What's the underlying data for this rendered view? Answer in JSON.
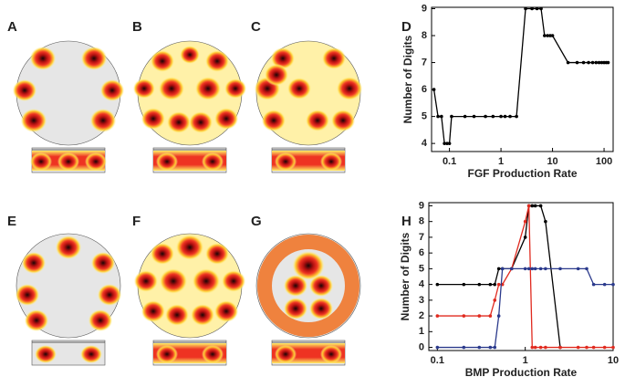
{
  "panel_labels": [
    "A",
    "B",
    "C",
    "D",
    "E",
    "F",
    "G",
    "H"
  ],
  "chart_data": [
    {
      "type": "line",
      "x_label": "FGF Production Rate",
      "y_label": "Number of Digits",
      "xscale": "log",
      "xlim": [
        0.045,
        150
      ],
      "xticks": [
        0.1,
        1,
        10,
        100
      ],
      "ylim": [
        3.7,
        9.05
      ],
      "yticks": [
        4,
        5,
        6,
        7,
        8,
        9
      ],
      "x": [
        0.05,
        0.06,
        0.07,
        0.08,
        0.09,
        0.1,
        0.11,
        0.2,
        0.3,
        0.5,
        0.7,
        1,
        1.2,
        1.5,
        2,
        3,
        4,
        5,
        6,
        7,
        8,
        9,
        10,
        20,
        30,
        40,
        50,
        60,
        70,
        80,
        90,
        100,
        110,
        120
      ],
      "series": [
        {
          "color": "#000000",
          "values": [
            6,
            5,
            5,
            4,
            4,
            4,
            5,
            5,
            5,
            5,
            5,
            5,
            5,
            5,
            5,
            9,
            9,
            9,
            9,
            8,
            8,
            8,
            8,
            7,
            7,
            7,
            7,
            7,
            7,
            7,
            7,
            7,
            7,
            7
          ]
        }
      ]
    },
    {
      "type": "line",
      "x_label": "BMP Production Rate",
      "y_label": "Number of Digits",
      "xscale": "log",
      "xlim": [
        0.08,
        10
      ],
      "xticks": [
        0.1,
        1,
        10
      ],
      "ylim": [
        -0.2,
        9.2
      ],
      "yticks": [
        0,
        1,
        2,
        3,
        4,
        5,
        6,
        7,
        8,
        9
      ],
      "x": [
        0.1,
        0.2,
        0.3,
        0.4,
        0.45,
        0.5,
        0.55,
        0.7,
        1,
        1.1,
        1.2,
        1.3,
        1.5,
        1.7,
        2.5,
        4,
        5,
        6,
        8,
        10
      ],
      "series": [
        {
          "color": "#000000",
          "values": [
            4,
            4,
            4,
            4,
            4,
            5,
            5,
            5,
            7,
            9,
            9,
            9,
            9,
            8,
            0,
            null,
            null,
            null,
            null,
            null
          ]
        },
        {
          "color": "#e02a1f",
          "values": [
            2,
            2,
            2,
            2,
            3,
            4,
            4,
            5,
            8,
            9,
            0,
            0,
            0,
            0,
            0,
            0,
            0,
            0,
            0,
            0
          ]
        },
        {
          "color": "#2b3a8c",
          "values": [
            0,
            0,
            0,
            0,
            0,
            2,
            5,
            5,
            5,
            5,
            5,
            5,
            5,
            5,
            5,
            5,
            5,
            4,
            4,
            4
          ]
        }
      ]
    }
  ]
}
